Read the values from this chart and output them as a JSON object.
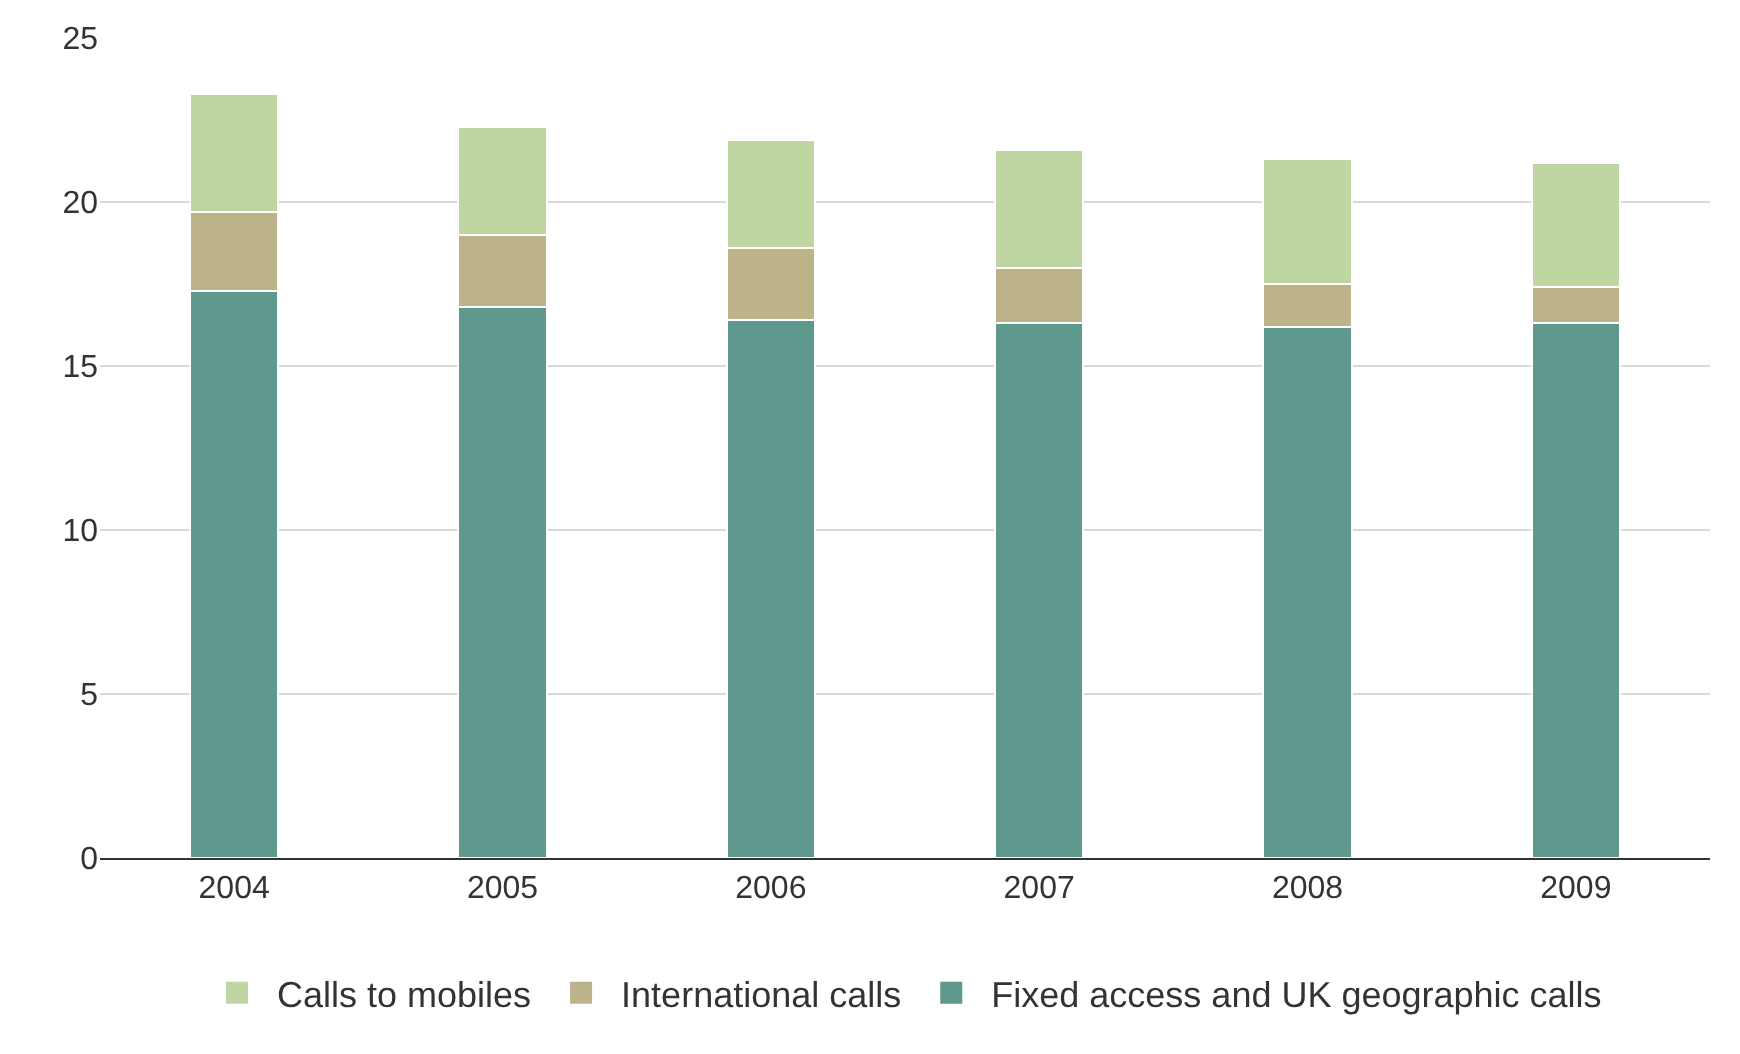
{
  "chart_data": {
    "type": "bar",
    "stacked": true,
    "categories": [
      "2004",
      "2005",
      "2006",
      "2007",
      "2008",
      "2009"
    ],
    "series": [
      {
        "name": "Fixed access and UK geographic calls",
        "color": "#5f988d",
        "values": [
          17.3,
          16.8,
          16.4,
          16.3,
          16.2,
          16.3
        ]
      },
      {
        "name": "International calls",
        "color": "#bcb38a",
        "values": [
          2.4,
          2.2,
          2.2,
          1.7,
          1.3,
          1.1
        ]
      },
      {
        "name": "Calls to mobiles",
        "color": "#bfd6a2",
        "values": [
          3.6,
          3.3,
          3.3,
          3.6,
          3.8,
          3.8
        ]
      }
    ],
    "ylim": [
      0,
      25
    ],
    "yticks": [
      0,
      5,
      10,
      15,
      20,
      25
    ],
    "grid": "y",
    "legend": "bottom"
  }
}
